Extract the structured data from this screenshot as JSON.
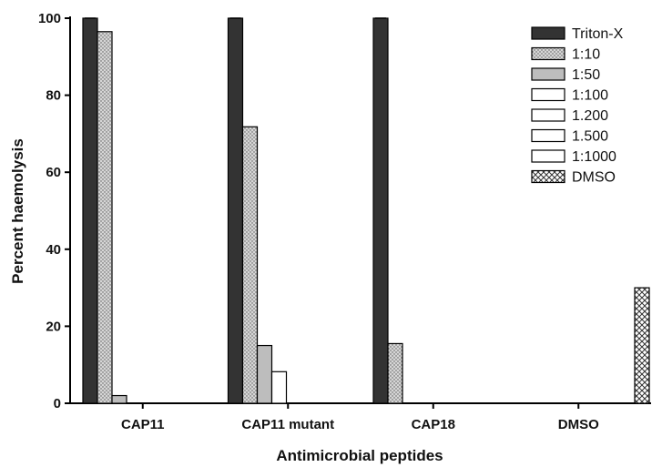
{
  "chart_data": {
    "type": "bar",
    "title": "",
    "xlabel": "Antimicrobial peptides",
    "ylabel": "Percent haemolysis",
    "ylim": [
      0,
      100
    ],
    "yticks": [
      0,
      20,
      40,
      60,
      80,
      100
    ],
    "grid": false,
    "legend_position": "top-right",
    "categories": [
      "CAP11",
      "CAP11 mutant",
      "CAP18",
      "DMSO"
    ],
    "series": [
      {
        "name": "Triton-X",
        "color": "#333333",
        "pattern": "solid",
        "values": [
          100,
          100,
          100,
          null
        ]
      },
      {
        "name": "1:10",
        "color": "#cfcfcf",
        "pattern": "dots",
        "values": [
          96.5,
          71.8,
          15.5,
          null
        ]
      },
      {
        "name": "1:50",
        "color": "#bdbdbd",
        "pattern": "solid",
        "values": [
          2,
          15,
          0,
          null
        ]
      },
      {
        "name": "1:100",
        "color": "#ffffff",
        "pattern": "solid",
        "values": [
          0,
          8.2,
          0,
          null
        ]
      },
      {
        "name": "1.200",
        "color": "#ffffff",
        "pattern": "solid",
        "values": [
          0,
          0,
          0,
          null
        ]
      },
      {
        "name": "1.500",
        "color": "#ffffff",
        "pattern": "solid",
        "values": [
          0,
          0,
          0,
          null
        ]
      },
      {
        "name": "1:1000",
        "color": "#ffffff",
        "pattern": "solid",
        "values": [
          0,
          0,
          0,
          null
        ]
      },
      {
        "name": "DMSO",
        "color": "#ffffff",
        "pattern": "crosshatch",
        "values": [
          null,
          null,
          null,
          30
        ]
      }
    ]
  }
}
